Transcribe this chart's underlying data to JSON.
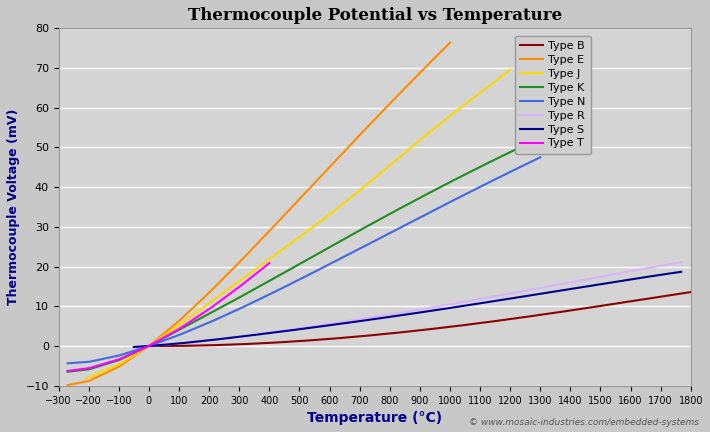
{
  "title": "Thermocouple Potential vs Temperature",
  "xlabel": "Temperature (°C)",
  "ylabel": "Thermocouple Voltage (mV)",
  "xlim": [
    -300,
    1800
  ],
  "ylim": [
    -10,
    80
  ],
  "xticks": [
    -300,
    -200,
    -100,
    0,
    100,
    200,
    300,
    400,
    500,
    600,
    700,
    800,
    900,
    1000,
    1100,
    1200,
    1300,
    1400,
    1500,
    1600,
    1700,
    1800
  ],
  "yticks": [
    -10,
    0,
    10,
    20,
    30,
    40,
    50,
    60,
    70,
    80
  ],
  "background_color": "#c8c8c8",
  "plot_bg_color": "#d4d4d4",
  "grid_color": "#ffffff",
  "watermark": "© www.mosaic-industries.com/embedded-systems",
  "type_b": {
    "label": "Type B",
    "color": "#8b0000",
    "temps": [
      0,
      100,
      200,
      300,
      400,
      500,
      600,
      700,
      800,
      900,
      1000,
      1100,
      1200,
      1300,
      1400,
      1500,
      1600,
      1700,
      1800
    ],
    "mv": [
      0.0,
      0.033,
      0.178,
      0.431,
      0.787,
      1.242,
      1.792,
      2.431,
      3.154,
      3.957,
      4.834,
      5.78,
      6.786,
      7.848,
      8.952,
      10.094,
      11.263,
      12.433,
      13.591
    ]
  },
  "type_e": {
    "label": "Type E",
    "color": "#ff8c00",
    "temps": [
      -270,
      -200,
      -100,
      0,
      100,
      200,
      300,
      400,
      500,
      600,
      700,
      800,
      900,
      1000
    ],
    "mv": [
      -9.835,
      -8.825,
      -5.237,
      0.0,
      6.319,
      13.421,
      21.036,
      28.943,
      37.005,
      45.093,
      53.112,
      61.022,
      68.787,
      76.373
    ]
  },
  "type_j": {
    "label": "Type J",
    "color": "#ffd700",
    "temps": [
      -210,
      -200,
      -100,
      0,
      100,
      200,
      300,
      400,
      500,
      600,
      700,
      800,
      900,
      1000,
      1100,
      1200
    ],
    "mv": [
      -8.096,
      -7.89,
      -4.633,
      0.0,
      5.269,
      10.779,
      16.327,
      21.848,
      27.393,
      33.102,
      39.132,
      45.494,
      51.877,
      57.953,
      63.792,
      69.553
    ]
  },
  "type_k": {
    "label": "Type K",
    "color": "#228b22",
    "temps": [
      -270,
      -200,
      -100,
      0,
      100,
      200,
      300,
      400,
      500,
      600,
      700,
      800,
      900,
      1000,
      1100,
      1200,
      1300,
      1372
    ],
    "mv": [
      -6.458,
      -5.891,
      -3.554,
      0.0,
      4.096,
      8.138,
      12.209,
      16.397,
      20.644,
      24.905,
      29.129,
      33.275,
      37.326,
      41.276,
      45.119,
      48.838,
      52.41,
      54.886
    ]
  },
  "type_n": {
    "label": "Type N",
    "color": "#4169e1",
    "temps": [
      -270,
      -200,
      -100,
      0,
      100,
      200,
      300,
      400,
      500,
      600,
      700,
      800,
      900,
      1000,
      1100,
      1200,
      1300
    ],
    "mv": [
      -4.345,
      -3.99,
      -2.407,
      0.0,
      2.774,
      5.913,
      9.341,
      12.974,
      16.748,
      20.613,
      24.527,
      28.455,
      32.371,
      36.256,
      40.087,
      43.846,
      47.513
    ]
  },
  "type_r": {
    "label": "Type R",
    "color": "#d8b4fe",
    "temps": [
      -50,
      0,
      100,
      200,
      300,
      400,
      500,
      600,
      700,
      800,
      900,
      1000,
      1100,
      1200,
      1300,
      1400,
      1500,
      1600,
      1700,
      1768
    ],
    "mv": [
      -0.226,
      0.0,
      0.647,
      1.469,
      2.401,
      3.408,
      4.471,
      5.583,
      6.743,
      7.95,
      9.205,
      10.506,
      11.85,
      13.228,
      14.629,
      16.04,
      17.451,
      18.849,
      20.222,
      21.101
    ]
  },
  "type_s": {
    "label": "Type S",
    "color": "#00008b",
    "temps": [
      -50,
      0,
      100,
      200,
      300,
      400,
      500,
      600,
      700,
      800,
      900,
      1000,
      1100,
      1200,
      1300,
      1400,
      1500,
      1600,
      1700,
      1768
    ],
    "mv": [
      -0.236,
      0.0,
      0.646,
      1.441,
      2.323,
      3.259,
      4.233,
      5.239,
      6.275,
      7.345,
      8.449,
      9.587,
      10.757,
      11.951,
      13.159,
      14.373,
      15.582,
      16.777,
      17.947,
      18.693
    ]
  },
  "type_t": {
    "label": "Type T",
    "color": "#ff00ff",
    "temps": [
      -270,
      -200,
      -100,
      0,
      100,
      200,
      300,
      400
    ],
    "mv": [
      -6.258,
      -5.603,
      -3.379,
      0.0,
      4.279,
      9.288,
      14.862,
      20.872
    ]
  }
}
